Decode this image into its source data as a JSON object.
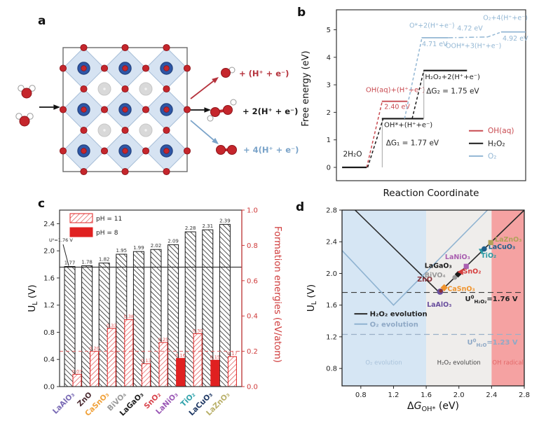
{
  "panels": {
    "a": {
      "label": "a",
      "products": [
        {
          "molecule": "OH",
          "text": "+ (H⁺ + e⁻)",
          "color": "#b5323c"
        },
        {
          "molecule": "H₂O₂",
          "text": "+ 2(H⁺ + e⁻)",
          "color": "#1a1a1a"
        },
        {
          "molecule": "O₂",
          "text": "+ 4(H⁺ + e⁻)",
          "color": "#7aa3c9"
        }
      ]
    },
    "b": {
      "label": "b"
    },
    "c": {
      "label": "c"
    },
    "d": {
      "label": "d"
    }
  },
  "chart_data": [
    {
      "panel": "b",
      "type": "line",
      "title": "",
      "xlabel": "Reaction Coordinate",
      "ylabel": "Free energy (eV)",
      "ylim": [
        -0.5,
        5.7
      ],
      "yticks": [
        "0",
        "1",
        "2",
        "3",
        "4",
        "5"
      ],
      "series": [
        {
          "name": "OH(aq)",
          "color": "#c84a50",
          "levels": [
            [
              0.24,
              0.375,
              2.4
            ]
          ],
          "transitions": [
            [
              0.16,
              0,
              0.242,
              2.4,
              "dashed"
            ]
          ],
          "labels": [
            {
              "t": "OH(aq)+(H⁺+e⁻)",
              "x": 0.155,
              "E": 2.74
            },
            {
              "t": "2.40 eV",
              "x": 0.253,
              "E": 2.12,
              "size": 9.5
            }
          ]
        },
        {
          "name": "H₂O₂",
          "color": "#1a1a1a",
          "levels": [
            [
              0.03,
              0.16,
              0
            ],
            [
              0.24,
              0.46,
              1.77
            ],
            [
              0.46,
              0.69,
              3.52
            ]
          ],
          "transitions": [
            [
              0.242,
              0,
              0.242,
              1.77,
              "thin"
            ],
            [
              0.462,
              1.77,
              0.462,
              3.52,
              "thin"
            ],
            [
              0.165,
              0,
              0.247,
              1.77,
              "dashed"
            ],
            [
              0.4,
              1.77,
              0.462,
              3.52,
              "dashed"
            ]
          ],
          "labels": [
            {
              "t": "2H₂O",
              "x": 0.035,
              "E": 0.4,
              "size": 10.5
            },
            {
              "t": "OH*+(H⁺+e⁻)",
              "x": 0.252,
              "E": 1.46
            },
            {
              "t": "ΔG₁ = 1.77 eV",
              "x": 0.262,
              "E": 0.8,
              "size": 10.5
            },
            {
              "t": "H₂O₂+2(H⁺+e⁻)",
              "x": 0.468,
              "E": 3.2
            },
            {
              "t": "ΔG₂ = 1.75 eV",
              "x": 0.475,
              "E": 2.68,
              "size": 10.5
            }
          ]
        },
        {
          "name": "O₂",
          "color": "#93b7d4",
          "levels": [
            [
              0.45,
              0.59,
              4.71
            ],
            [
              0.87,
              1.0,
              4.92
            ]
          ],
          "transitions": [
            [
              0.36,
              1.77,
              0.452,
              4.71,
              "dashed"
            ],
            [
              0.59,
              4.71,
              0.8,
              4.74,
              "dashdot"
            ],
            [
              0.8,
              4.74,
              0.872,
              4.92,
              "dashed"
            ]
          ],
          "labels": [
            {
              "t": "O*+2(H⁺+e⁻)",
              "x": 0.385,
              "E": 5.08,
              "size": 9.5
            },
            {
              "t": "4.71 eV",
              "x": 0.452,
              "E": 4.4,
              "size": 9.5
            },
            {
              "t": "OOH*+3(H⁺+e⁻)",
              "x": 0.578,
              "E": 4.34,
              "size": 9.5
            },
            {
              "t": "4.72 eV",
              "x": 0.638,
              "E": 4.98,
              "size": 9.5
            },
            {
              "t": "O₂+4(H⁺+e⁻)",
              "x": 0.775,
              "E": 5.36,
              "size": 9.5
            },
            {
              "t": "4.92 eV",
              "x": 0.878,
              "E": 4.6,
              "size": 9.5
            }
          ]
        }
      ],
      "legend": [
        {
          "label": "OH(aq)",
          "color": "#c84a50",
          "E": 1.33
        },
        {
          "label": "H₂O₂",
          "color": "#1a1a1a",
          "E": 0.87
        },
        {
          "label": "O₂",
          "color": "#93b7d4",
          "E": 0.41
        }
      ]
    },
    {
      "panel": "c",
      "type": "bar",
      "categories": [
        "LaAlO₃",
        "ZnO",
        "CaSnO₃",
        "BiVO₄",
        "LaGaO₃",
        "SnO₂",
        "LaNiO₃",
        "TiO₂",
        "LaCuO₃",
        "LaZnO₃"
      ],
      "category_colors": [
        "#7a6bb5",
        "#4a2a30",
        "#f0a13a",
        "#9b9b9b",
        "#1a1a1a",
        "#d8414a",
        "#9b59b6",
        "#31a3ac",
        "#1f3864",
        "#b9b069"
      ],
      "series": [
        {
          "name": "U_L",
          "axis": "left",
          "values": [
            1.77,
            1.78,
            1.82,
            1.95,
            1.99,
            2.02,
            2.09,
            2.28,
            2.31,
            2.39
          ]
        },
        {
          "name": "Formation energies",
          "axis": "right",
          "values": [
            0.07,
            0.2,
            0.33,
            0.38,
            0.13,
            0.25,
            0.16,
            0.3,
            0.15,
            0.17
          ],
          "ph": [
            11,
            11,
            11,
            11,
            11,
            11,
            8,
            11,
            8,
            11
          ]
        }
      ],
      "left_axis": {
        "ticks": [
          "0.0",
          "0.4",
          "0.8",
          "1.2",
          "1.6",
          "2.0",
          "2.4"
        ],
        "max": 2.6,
        "label_segments": [
          {
            "t": "U"
          },
          {
            "t": "L",
            "sub": 1
          },
          {
            "t": " (V)"
          }
        ]
      },
      "right_axis": {
        "ticks": [
          "0.0",
          "0.2",
          "0.4",
          "0.6",
          "0.8",
          "1.0"
        ],
        "max": 1.0,
        "label": "Formation energies (eV/atom)",
        "color": "#cf3a3a"
      },
      "ref_line": {
        "value": 1.76,
        "label": "U⁰=1.76 V"
      },
      "dashed_threshold": 0.2,
      "legend": [
        {
          "label": "pH = 11",
          "style": "hatched"
        },
        {
          "label": "pH = 8",
          "style": "solid"
        }
      ],
      "bar_color": "#e02020"
    },
    {
      "panel": "d",
      "type": "scatter",
      "xlabel_segments": [
        {
          "t": "Δ"
        },
        {
          "t": "G",
          "i": 1
        },
        {
          "t": "OH*",
          "sub": 1
        },
        {
          "t": " (eV)"
        }
      ],
      "ylabel_segments": [
        {
          "t": "U"
        },
        {
          "t": "L",
          "sub": 1
        },
        {
          "t": " (V)"
        }
      ],
      "xlim": [
        0.57,
        2.8
      ],
      "ylim": [
        0.58,
        2.8
      ],
      "xticks": [
        "0.8",
        "1.2",
        "1.6",
        "2.0",
        "2.4",
        "2.8"
      ],
      "yticks": [
        "0.8",
        "1.2",
        "1.6",
        "2.0",
        "2.4",
        "2.8"
      ],
      "regions": [
        {
          "from": 0.57,
          "to": 1.6,
          "color": "#d6e6f4"
        },
        {
          "from": 1.6,
          "to": 2.4,
          "color": "#efedeb"
        },
        {
          "from": 2.4,
          "to": 2.8,
          "color": "#f5a2a2"
        }
      ],
      "region_labels": [
        {
          "text": "O₂ evolution",
          "x": 1.08,
          "y": 0.85,
          "color": "#a9c2da"
        },
        {
          "text": "H₂O₂ evolution",
          "x": 2.0,
          "y": 0.85,
          "color": "#444444"
        },
        {
          "text": "OH radical",
          "x": 2.6,
          "y": 0.85,
          "color": "#e26868"
        }
      ],
      "lines": [
        {
          "name": "H₂O₂ evolution",
          "color": "#2a2a2a",
          "points": [
            [
              0.73,
              2.8
            ],
            [
              1.76,
              1.76
            ],
            [
              2.8,
              2.8
            ]
          ]
        },
        {
          "name": "O₂ evolution",
          "color": "#8fb3d1",
          "points": [
            [
              0.57,
              2.29
            ],
            [
              1.2,
              1.6
            ],
            [
              2.35,
              2.8
            ]
          ]
        }
      ],
      "hlines": [
        {
          "y": 1.76,
          "color": "#3a3a3a",
          "label_color": "#222222",
          "lx": 2.72,
          "ly": 1.65,
          "label_segments": [
            {
              "t": "U"
            },
            {
              "t": "0",
              "sup": 1
            },
            {
              "t": "H₂O₂",
              "sub": 1
            },
            {
              "t": "=1.76 V"
            }
          ]
        },
        {
          "y": 1.23,
          "color": "#9ab0c8",
          "label_color": "#8fa9c6",
          "lx": 2.72,
          "ly": 1.1,
          "label_segments": [
            {
              "t": "U"
            },
            {
              "t": "0",
              "sup": 1
            },
            {
              "t": "H₂O",
              "sub": 1
            },
            {
              "t": "=1.23 V"
            }
          ]
        }
      ],
      "legend": [
        {
          "label": "H₂O₂ evolution",
          "color": "#2a2a2a",
          "text_color": "#222222",
          "gy": 1.49
        },
        {
          "label": "O₂ evolution",
          "color": "#8fb3d1",
          "text_color": "#8fa9c6",
          "gy": 1.36
        }
      ],
      "points": [
        {
          "name": "LaAlO₃",
          "x": 1.77,
          "y": 1.77,
          "color": "#6a4f9e",
          "marker": "circle",
          "size": 4.4,
          "label": {
            "x": 1.76,
            "y": 1.58,
            "anchor": "middle"
          }
        },
        {
          "name": "ZnO",
          "x": 1.78,
          "y": 1.78,
          "color": "#8a3038",
          "marker": "circle",
          "size": 2.6,
          "label": {
            "x": 1.49,
            "y": 1.9,
            "anchor": "start"
          }
        },
        {
          "name": "CaSnO₃",
          "x": 1.82,
          "y": 1.82,
          "color": "#f0942d",
          "marker": "diamond",
          "size": 4.2,
          "label": {
            "x": 1.86,
            "y": 1.78,
            "anchor": "start"
          }
        },
        {
          "name": "BiVO₄",
          "x": 1.95,
          "y": 1.95,
          "color": "#9a9a9a",
          "marker": "circle",
          "size": 3.4,
          "label": {
            "x": 1.58,
            "y": 1.95,
            "anchor": "start"
          }
        },
        {
          "name": "LaGaO₃",
          "x": 1.99,
          "y": 1.99,
          "color": "#1a1a1a",
          "marker": "diamond",
          "size": 3.8,
          "label": {
            "x": 1.58,
            "y": 2.07,
            "anchor": "start"
          }
        },
        {
          "name": "SnO₂",
          "x": 2.02,
          "y": 2.02,
          "color": "#d63c3c",
          "marker": "tri-left",
          "size": 4.6,
          "label": {
            "x": 2.05,
            "y": 2.0,
            "anchor": "start"
          }
        },
        {
          "name": "LaNiO₃",
          "x": 2.09,
          "y": 2.09,
          "color": "#a95fb0",
          "marker": "square",
          "size": 3.6,
          "label": {
            "x": 1.83,
            "y": 2.18,
            "anchor": "start"
          }
        },
        {
          "name": "TiO₂",
          "x": 2.28,
          "y": 2.28,
          "color": "#2a9aa3",
          "marker": "tri-down",
          "size": 4.4,
          "label": {
            "x": 2.27,
            "y": 2.2,
            "anchor": "start"
          }
        },
        {
          "name": "LaCuO₃",
          "x": 2.31,
          "y": 2.31,
          "color": "#1f5f8a",
          "marker": "circle",
          "size": 3.8,
          "label": {
            "x": 2.36,
            "y": 2.31,
            "anchor": "start"
          }
        },
        {
          "name": "LaZnO₃",
          "x": 2.39,
          "y": 2.39,
          "color": "#b0a25a",
          "marker": "square",
          "size": 3.6,
          "label": {
            "x": 2.44,
            "y": 2.4,
            "anchor": "start"
          }
        }
      ]
    }
  ]
}
